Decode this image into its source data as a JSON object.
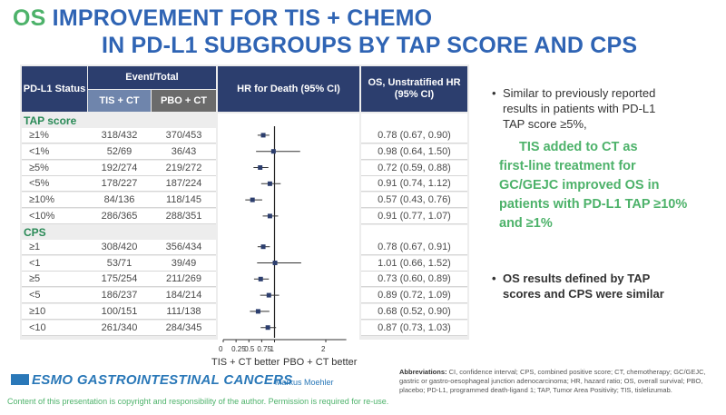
{
  "slide": {
    "title_part1": "OS",
    "title_part2": " IMPROVEMENT FOR TIS + CHEMO",
    "title_line2": "IN PD-L1 SUBGROUPS BY TAP SCORE AND CPS"
  },
  "table": {
    "col_status": "PD-L1 Status",
    "col_event": "Event/Total",
    "col_tis": "TIS + CT",
    "col_pbo": "PBO + CT",
    "col_hr": "HR for Death (95% CI)",
    "col_os": "OS, Unstratified HR (95% CI)"
  },
  "chart_data": {
    "type": "forest",
    "xlabel": "",
    "x_ticks": [
      "0",
      "0.25",
      "0.5",
      "0.75",
      "1",
      "2"
    ],
    "x_tick_values": [
      0,
      0.25,
      0.5,
      0.75,
      1,
      2
    ],
    "xlim": [
      0,
      2.4
    ],
    "reference_line": 1,
    "left_label": "TIS + CT better",
    "right_label": "PBO + CT better",
    "groups": [
      {
        "name": "TAP score",
        "rows": [
          {
            "subgroup": "≥1%",
            "tis": "318/432",
            "pbo": "370/453",
            "hr": 0.78,
            "lo": 0.67,
            "hi": 0.9,
            "text": "0.78 (0.67, 0.90)"
          },
          {
            "subgroup": "<1%",
            "tis": "52/69",
            "pbo": "36/43",
            "hr": 0.98,
            "lo": 0.64,
            "hi": 1.5,
            "text": "0.98 (0.64, 1.50)"
          },
          {
            "subgroup": "≥5%",
            "tis": "192/274",
            "pbo": "219/272",
            "hr": 0.72,
            "lo": 0.59,
            "hi": 0.88,
            "text": "0.72 (0.59, 0.88)"
          },
          {
            "subgroup": "<5%",
            "tis": "178/227",
            "pbo": "187/224",
            "hr": 0.91,
            "lo": 0.74,
            "hi": 1.12,
            "text": "0.91 (0.74, 1.12)"
          },
          {
            "subgroup": "≥10%",
            "tis": "84/136",
            "pbo": "118/145",
            "hr": 0.57,
            "lo": 0.43,
            "hi": 0.76,
            "text": "0.57 (0.43, 0.76)"
          },
          {
            "subgroup": "<10%",
            "tis": "286/365",
            "pbo": "288/351",
            "hr": 0.91,
            "lo": 0.77,
            "hi": 1.07,
            "text": "0.91 (0.77, 1.07)"
          }
        ]
      },
      {
        "name": "CPS",
        "rows": [
          {
            "subgroup": "≥1",
            "tis": "308/420",
            "pbo": "356/434",
            "hr": 0.78,
            "lo": 0.67,
            "hi": 0.91,
            "text": "0.78 (0.67, 0.91)"
          },
          {
            "subgroup": "<1",
            "tis": "53/71",
            "pbo": "39/49",
            "hr": 1.01,
            "lo": 0.66,
            "hi": 1.52,
            "text": "1.01 (0.66, 1.52)"
          },
          {
            "subgroup": "≥5",
            "tis": "175/254",
            "pbo": "211/269",
            "hr": 0.73,
            "lo": 0.6,
            "hi": 0.89,
            "text": "0.73 (0.60, 0.89)"
          },
          {
            "subgroup": "<5",
            "tis": "186/237",
            "pbo": "184/214",
            "hr": 0.89,
            "lo": 0.72,
            "hi": 1.09,
            "text": "0.89 (0.72, 1.09)"
          },
          {
            "subgroup": "≥10",
            "tis": "100/151",
            "pbo": "111/138",
            "hr": 0.68,
            "lo": 0.52,
            "hi": 0.9,
            "text": "0.68 (0.52, 0.90)"
          },
          {
            "subgroup": "<10",
            "tis": "261/340",
            "pbo": "284/345",
            "hr": 0.87,
            "lo": 0.73,
            "hi": 1.03,
            "text": "0.87 (0.73, 1.03)"
          }
        ]
      }
    ]
  },
  "bullets": {
    "b1": "Similar to previously reported results in patients with PD-L1 TAP score ≥5%,",
    "b2_line1": "TIS added to CT as",
    "b2_rest": "first-line treatment for GC/GEJC improved OS in patients with PD-L1 TAP ≥10% and ≥1%",
    "b3": "OS results defined by TAP scores and CPS were similar"
  },
  "footer": {
    "brand": "ESMO GASTROINTESTINAL CANCERS",
    "author": "Markus Moehler",
    "copyright": "Content of this presentation is copyright and responsibility of the author. Permission is required for re-use.",
    "abbrev_label": "Abbreviations:",
    "abbrev_text": " CI, confidence interval; CPS, combined positive score; CT, chemotherapy; GC/GEJC, gastric or gastro-oesophageal junction adenocarcinoma; HR, hazard ratio; OS, overall survival; PBO, placebo; PD-L1, programmed death-ligand 1; TAP, Tumor Area Positivity; TIS, tislelizumab."
  },
  "colors": {
    "header_navy": "#2c3e6e",
    "tis_header": "#6f85ac",
    "pbo_header": "#6b6b6b",
    "accent_green": "#4db26a",
    "title_blue": "#2f64b4"
  }
}
